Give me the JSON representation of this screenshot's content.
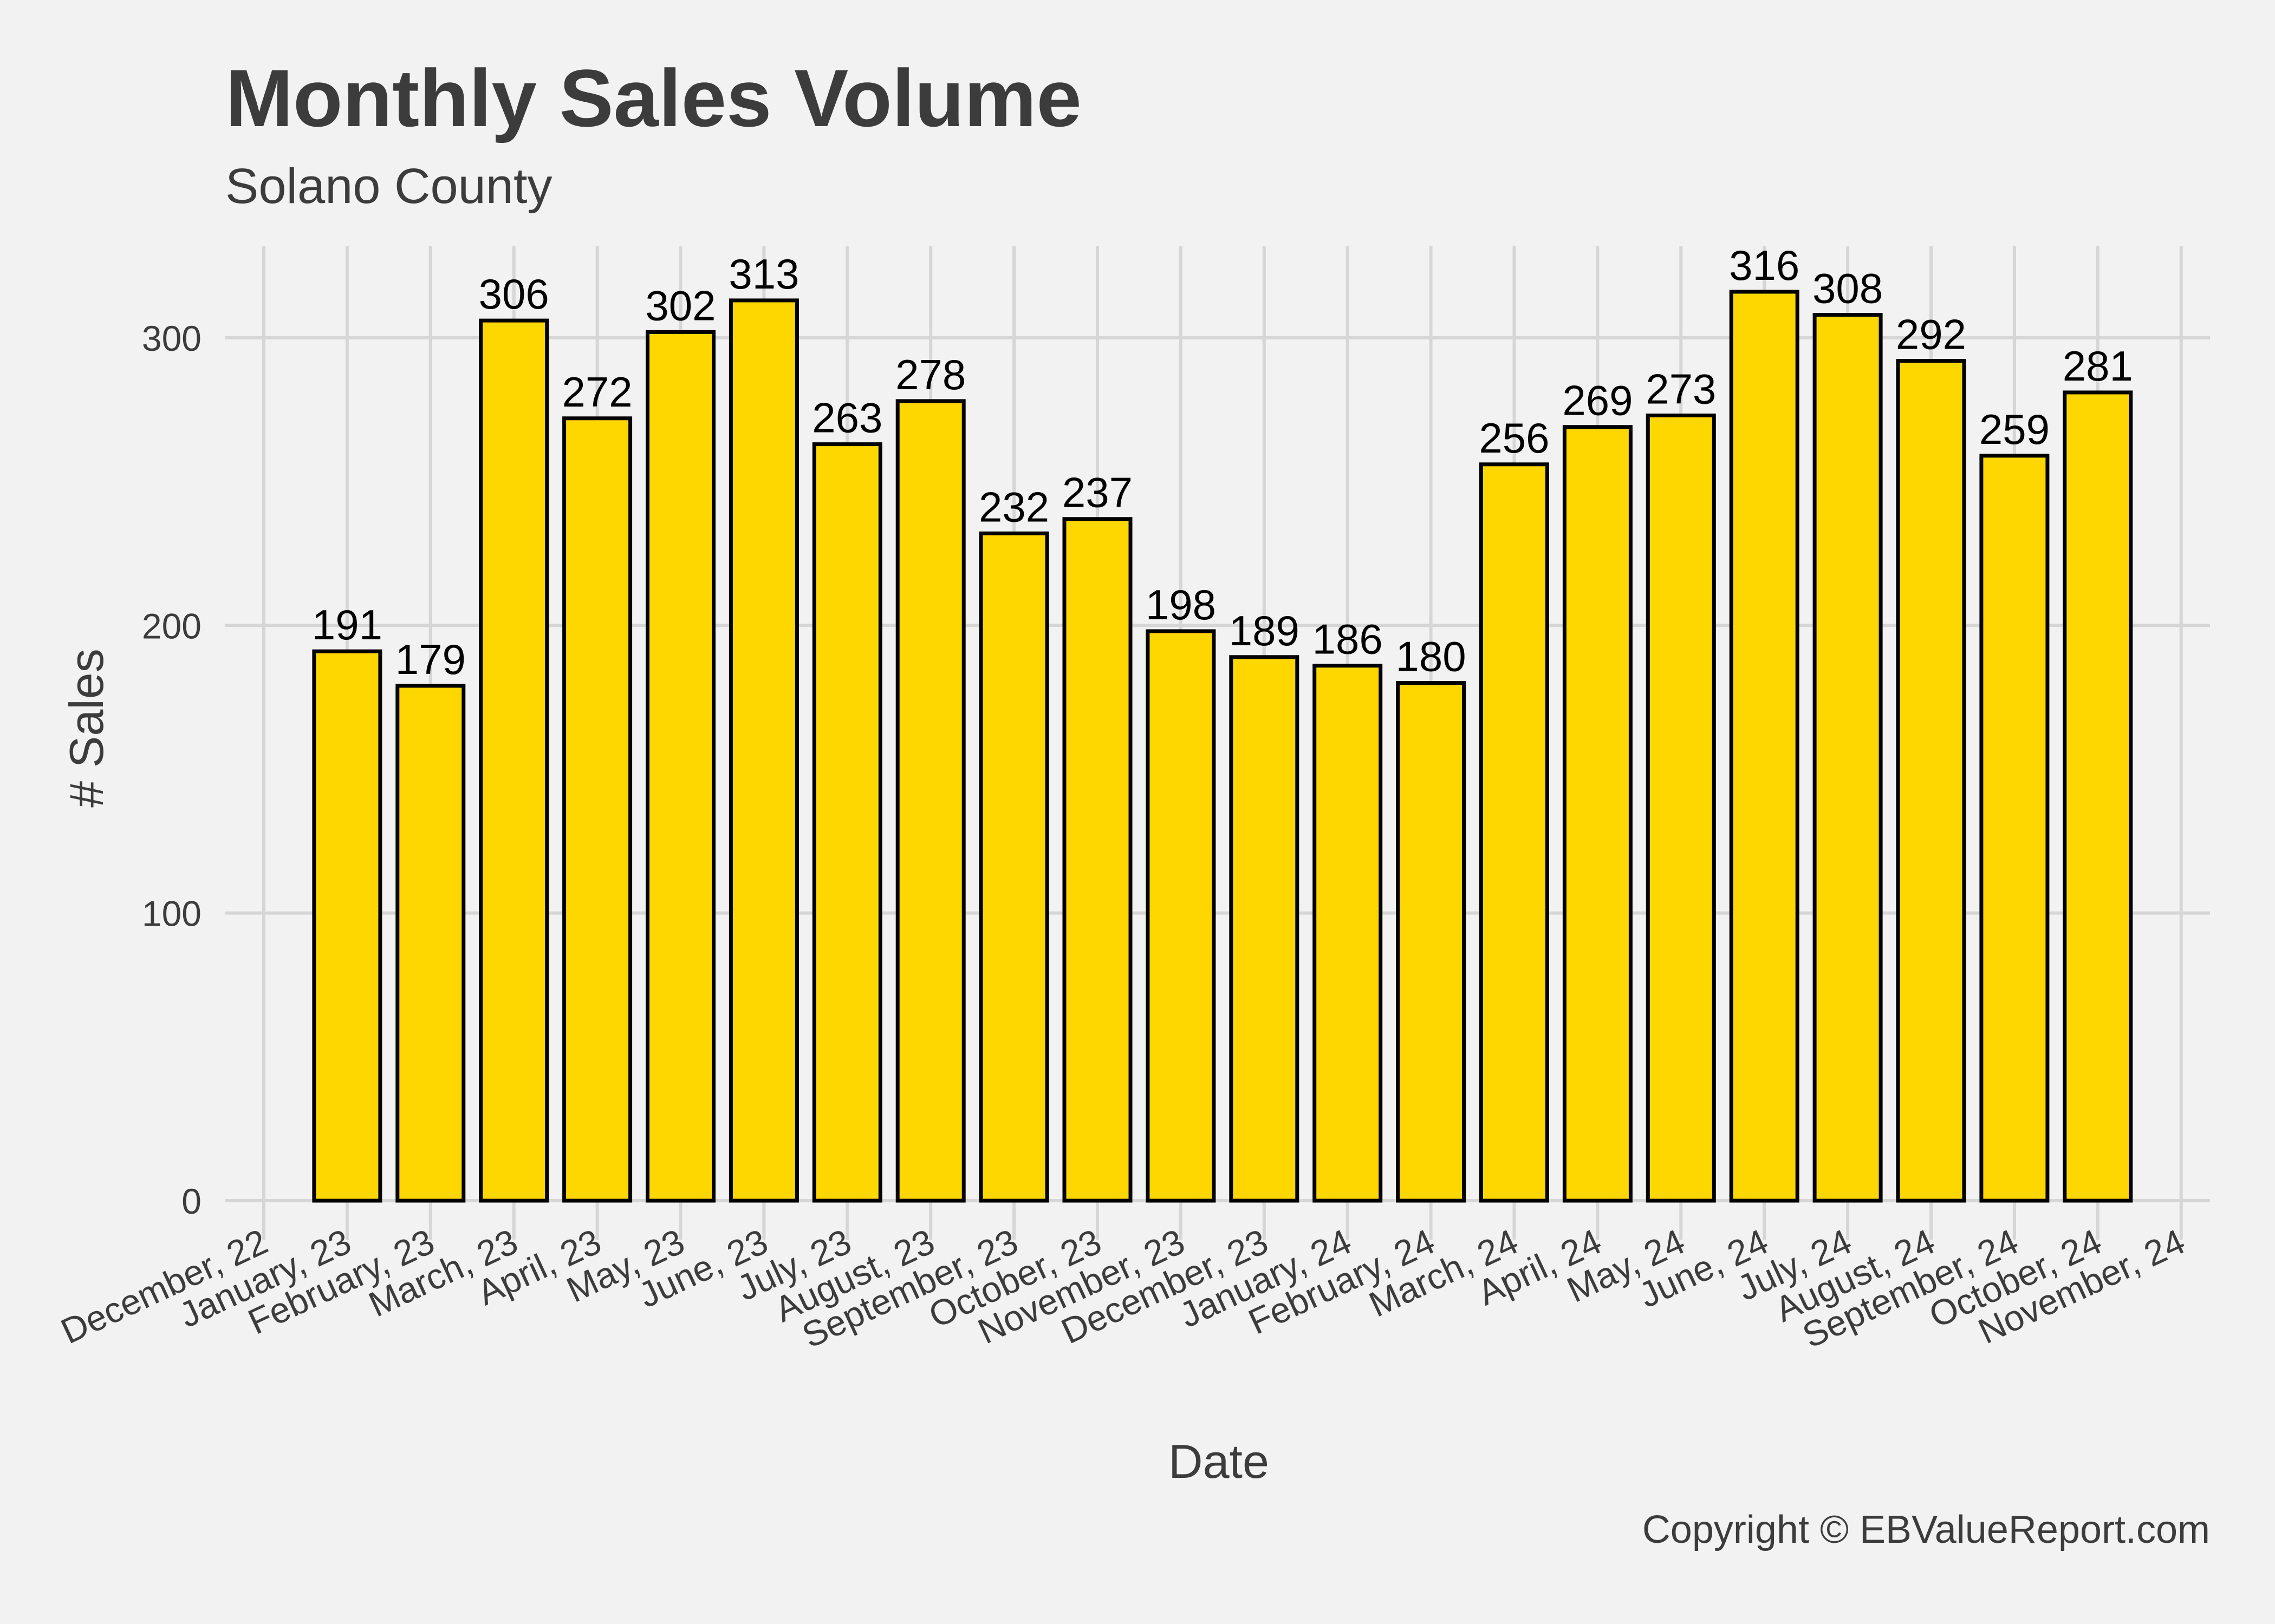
{
  "chart_data": {
    "type": "bar",
    "title": "Monthly Sales Volume",
    "subtitle": "Solano County",
    "xlabel": "Date",
    "ylabel": "# Sales",
    "caption": "Copyright  © EBValueReport.com",
    "ylim": [
      0,
      320
    ],
    "y_ticks": [
      0,
      100,
      200,
      300
    ],
    "grid": true,
    "bar_color": "#ffd700",
    "bar_outline": "#000000",
    "background": "#f2f2f2",
    "grid_color": "#d6d6d6",
    "x_tick_labels": [
      "December, 22",
      "January, 23",
      "February, 23",
      "March, 23",
      "April, 23",
      "May, 23",
      "June, 23",
      "July, 23",
      "August, 23",
      "September, 23",
      "October, 23",
      "November, 23",
      "December, 23",
      "January, 24",
      "February, 24",
      "March, 24",
      "April, 24",
      "May, 24",
      "June, 24",
      "July, 24",
      "August, 24",
      "September, 24",
      "October, 24",
      "November, 24"
    ],
    "categories": [
      "January, 23",
      "February, 23",
      "March, 23",
      "April, 23",
      "May, 23",
      "June, 23",
      "July, 23",
      "August, 23",
      "September, 23",
      "October, 23",
      "November, 23",
      "December, 23",
      "January, 24",
      "February, 24",
      "March, 24",
      "April, 24",
      "May, 24",
      "June, 24",
      "July, 24",
      "August, 24",
      "September, 24",
      "October, 24"
    ],
    "values": [
      191,
      179,
      306,
      272,
      302,
      313,
      263,
      278,
      232,
      237,
      198,
      189,
      186,
      180,
      256,
      269,
      273,
      316,
      308,
      292,
      259,
      281
    ]
  }
}
